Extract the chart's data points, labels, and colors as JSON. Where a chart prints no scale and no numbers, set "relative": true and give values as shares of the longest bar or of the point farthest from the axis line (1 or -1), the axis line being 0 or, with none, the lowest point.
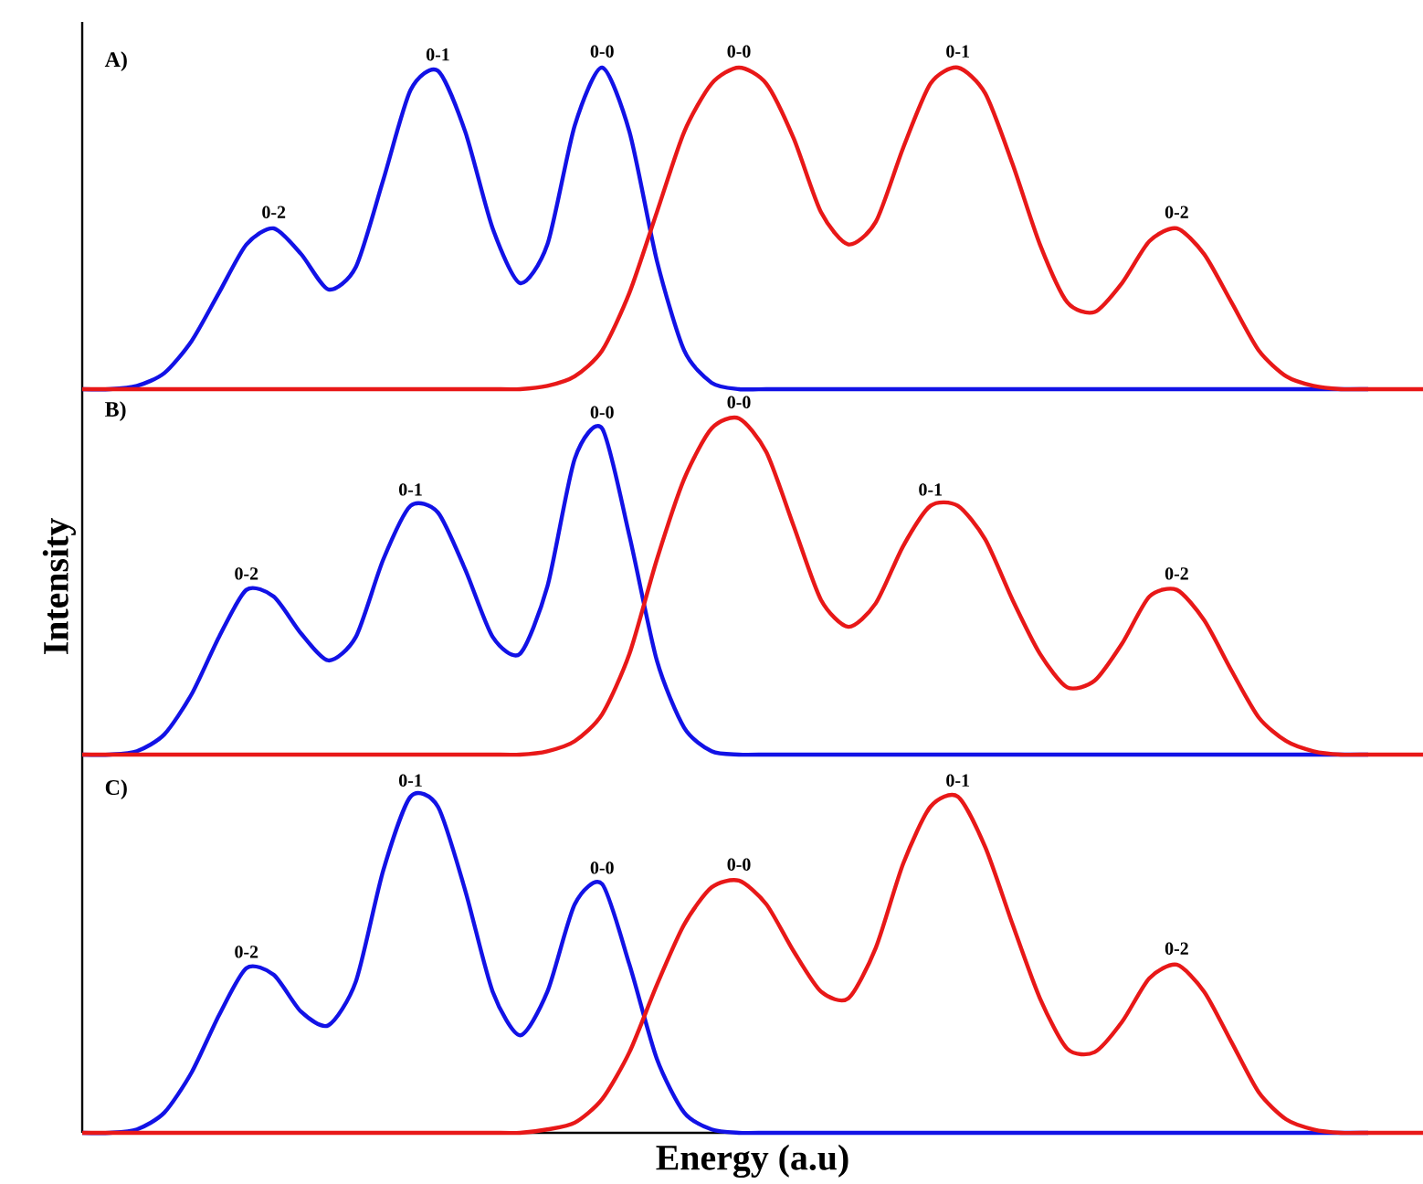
{
  "chart_data": [
    {
      "type": "line",
      "relative": true,
      "title": "A)",
      "categories": [
        null,
        null,
        null,
        null,
        null,
        null,
        null,
        null,
        null,
        null,
        null,
        null,
        null,
        null,
        null,
        null,
        null,
        null,
        null,
        null,
        null,
        null,
        null,
        null,
        null,
        null,
        null,
        null,
        null,
        null,
        null,
        null,
        null,
        null,
        null,
        null,
        null,
        null,
        null,
        null,
        null,
        null,
        null,
        null,
        null,
        null,
        null,
        null,
        null,
        null
      ],
      "series": [
        {
          "color": "#1212e6",
          "values": [
            0,
            0,
            0.01,
            0.05,
            0.15,
            0.3,
            0.45,
            0.5,
            0.42,
            0.31,
            0.38,
            0.65,
            0.93,
            0.99,
            0.8,
            0.5,
            0.33,
            0.45,
            0.82,
            1.0,
            0.8,
            0.4,
            0.12,
            0.02,
            0,
            0,
            0,
            0,
            0,
            0,
            0,
            0,
            0,
            0,
            0,
            0,
            0,
            0,
            0,
            0,
            0,
            0,
            0,
            0,
            0,
            0,
            0,
            0,
            null,
            null
          ]
        },
        {
          "color": "#e81818",
          "values": [
            0,
            0,
            0,
            0,
            0,
            0,
            0,
            0,
            0,
            0,
            0,
            0,
            0,
            0,
            0,
            0,
            0,
            0.01,
            0.04,
            0.12,
            0.3,
            0.55,
            0.8,
            0.95,
            1.0,
            0.95,
            0.78,
            0.55,
            0.45,
            0.52,
            0.75,
            0.95,
            1.0,
            0.92,
            0.7,
            0.45,
            0.27,
            0.24,
            0.33,
            0.46,
            0.5,
            0.42,
            0.27,
            0.12,
            0.04,
            0.01,
            0,
            0,
            0,
            0
          ]
        }
      ],
      "annotations": [
        "0-2",
        "0-1",
        "0-0",
        "0-0",
        "0-1",
        "0-2"
      ]
    },
    {
      "type": "line",
      "relative": true,
      "title": "B)",
      "ylabel": "Intensity",
      "categories": [
        null,
        null,
        null,
        null,
        null,
        null,
        null,
        null,
        null,
        null,
        null,
        null,
        null,
        null,
        null,
        null,
        null,
        null,
        null,
        null,
        null,
        null,
        null,
        null,
        null,
        null,
        null,
        null,
        null,
        null,
        null,
        null,
        null,
        null,
        null,
        null,
        null,
        null,
        null,
        null,
        null,
        null,
        null,
        null,
        null,
        null,
        null,
        null,
        null,
        null
      ],
      "series": [
        {
          "color": "#1212e6",
          "values": [
            0,
            0,
            0.01,
            0.06,
            0.18,
            0.35,
            0.49,
            0.47,
            0.36,
            0.28,
            0.35,
            0.58,
            0.74,
            0.72,
            0.55,
            0.35,
            0.3,
            0.5,
            0.88,
            0.97,
            0.65,
            0.28,
            0.08,
            0.01,
            0,
            0,
            0,
            0,
            0,
            0,
            0,
            0,
            0,
            0,
            0,
            0,
            0,
            0,
            0,
            0,
            0,
            0,
            0,
            0,
            0,
            0,
            0,
            0,
            null,
            null
          ]
        },
        {
          "color": "#e81818",
          "values": [
            0,
            0,
            0,
            0,
            0,
            0,
            0,
            0,
            0,
            0,
            0,
            0,
            0,
            0,
            0,
            0,
            0,
            0.01,
            0.04,
            0.12,
            0.3,
            0.58,
            0.82,
            0.97,
            1.0,
            0.9,
            0.68,
            0.46,
            0.38,
            0.45,
            0.62,
            0.74,
            0.74,
            0.64,
            0.46,
            0.3,
            0.2,
            0.22,
            0.33,
            0.47,
            0.49,
            0.4,
            0.25,
            0.11,
            0.04,
            0.01,
            0,
            0,
            0,
            0
          ]
        }
      ],
      "annotations": [
        "0-2",
        "0-1",
        "0-0",
        "0-0",
        "0-1",
        "0-2"
      ]
    },
    {
      "type": "line",
      "relative": true,
      "title": "C)",
      "xlabel": "Energy (a.u)",
      "categories": [
        null,
        null,
        null,
        null,
        null,
        null,
        null,
        null,
        null,
        null,
        null,
        null,
        null,
        null,
        null,
        null,
        null,
        null,
        null,
        null,
        null,
        null,
        null,
        null,
        null,
        null,
        null,
        null,
        null,
        null,
        null,
        null,
        null,
        null,
        null,
        null,
        null,
        null,
        null,
        null,
        null,
        null,
        null,
        null,
        null,
        null,
        null,
        null,
        null,
        null
      ],
      "series": [
        {
          "color": "#1212e6",
          "values": [
            0,
            0,
            0.01,
            0.06,
            0.18,
            0.35,
            0.49,
            0.47,
            0.36,
            0.32,
            0.45,
            0.78,
            1.0,
            0.97,
            0.72,
            0.42,
            0.29,
            0.42,
            0.68,
            0.74,
            0.5,
            0.22,
            0.06,
            0.01,
            0,
            0,
            0,
            0,
            0,
            0,
            0,
            0,
            0,
            0,
            0,
            0,
            0,
            0,
            0,
            0,
            0,
            0,
            0,
            0,
            0,
            0,
            0,
            0,
            null,
            null
          ]
        },
        {
          "color": "#e81818",
          "values": [
            0,
            0,
            0,
            0,
            0,
            0,
            0,
            0,
            0,
            0,
            0,
            0,
            0,
            0,
            0,
            0,
            0,
            0.01,
            0.03,
            0.1,
            0.24,
            0.44,
            0.62,
            0.73,
            0.75,
            0.68,
            0.54,
            0.42,
            0.4,
            0.55,
            0.8,
            0.97,
            1.0,
            0.85,
            0.62,
            0.4,
            0.25,
            0.24,
            0.33,
            0.46,
            0.5,
            0.42,
            0.27,
            0.12,
            0.04,
            0.01,
            0,
            0,
            0,
            0
          ]
        }
      ],
      "annotations": [
        "0-2",
        "0-1",
        "0-0",
        "0-0",
        "0-1",
        "0-2"
      ]
    }
  ]
}
